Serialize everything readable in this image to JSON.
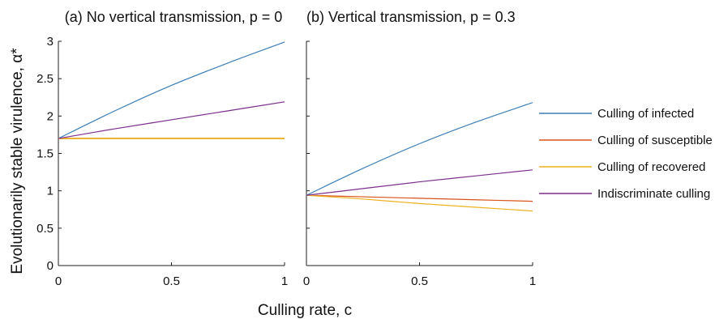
{
  "figure": {
    "ylabel": "Evolutionarily stable virulence, α*",
    "xlabel": "Culling rate, c"
  },
  "legend": {
    "placement": "right",
    "items": [
      {
        "label": "Culling of infected",
        "color": "#3d7fb8"
      },
      {
        "label": "Culling of susceptible",
        "color": "#d95319"
      },
      {
        "label": "Culling of recovered",
        "color": "#edb120"
      },
      {
        "label": "Indiscriminate culling",
        "color": "#7e2f8e"
      }
    ]
  },
  "chart_data": [
    {
      "type": "line",
      "title": "(a) No vertical transmission, p = 0",
      "xlim": [
        0,
        1
      ],
      "ylim": [
        0,
        3
      ],
      "xticks": [
        "0",
        "0.5",
        "1"
      ],
      "yticks": [
        "0",
        "0.5",
        "1",
        "1.5",
        "2",
        "2.5",
        "3"
      ],
      "grid": false,
      "x": [
        0,
        0.25,
        0.5,
        0.75,
        1
      ],
      "series": [
        {
          "name": "Culling of infected",
          "color": "#3d7fb8",
          "values": [
            1.7,
            2.07,
            2.41,
            2.71,
            2.99
          ]
        },
        {
          "name": "Culling of susceptible",
          "color": "#d95319",
          "values": [
            1.7,
            1.7,
            1.7,
            1.7,
            1.7
          ]
        },
        {
          "name": "Culling of recovered",
          "color": "#edb120",
          "values": [
            1.7,
            1.7,
            1.7,
            1.7,
            1.7
          ]
        },
        {
          "name": "Indiscriminate culling",
          "color": "#7e2f8e",
          "values": [
            1.7,
            1.83,
            1.95,
            2.07,
            2.19
          ]
        }
      ]
    },
    {
      "type": "line",
      "title": "(b) Vertical transmission, p = 0.3",
      "xlim": [
        0,
        1
      ],
      "ylim": [
        0,
        3
      ],
      "xticks": [
        "0",
        "0.5",
        "1"
      ],
      "yticks": [
        "0",
        "0.5",
        "1",
        "1.5",
        "2",
        "2.5",
        "3"
      ],
      "yticklabels_shown": false,
      "grid": false,
      "x": [
        0,
        0.25,
        0.5,
        0.75,
        1
      ],
      "series": [
        {
          "name": "Culling of infected",
          "color": "#3d7fb8",
          "values": [
            0.94,
            1.3,
            1.63,
            1.92,
            2.18
          ]
        },
        {
          "name": "Culling of susceptible",
          "color": "#d95319",
          "values": [
            0.94,
            0.92,
            0.9,
            0.88,
            0.86
          ]
        },
        {
          "name": "Culling of recovered",
          "color": "#edb120",
          "values": [
            0.94,
            0.89,
            0.83,
            0.78,
            0.73
          ]
        },
        {
          "name": "Indiscriminate culling",
          "color": "#7e2f8e",
          "values": [
            0.94,
            1.03,
            1.12,
            1.2,
            1.28
          ]
        }
      ]
    }
  ]
}
